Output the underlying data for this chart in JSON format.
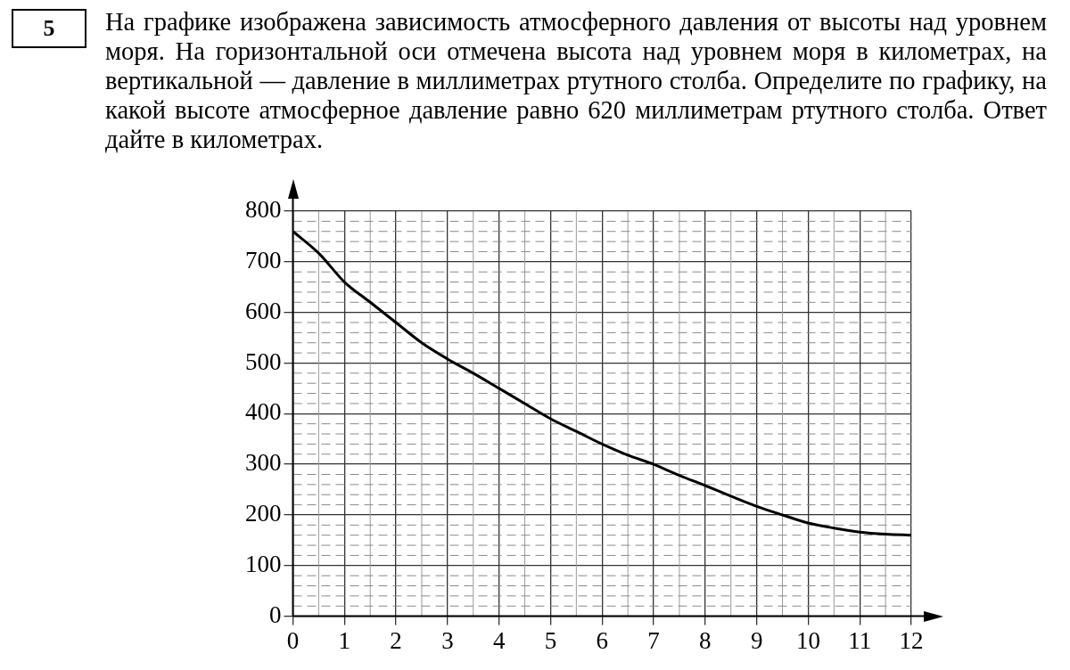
{
  "chart_data": {
    "type": "line",
    "title": "На графике изображена зависимость атмосферного давления от высоты над уровнем моря. На горизонтальной оси отмечена высота над уровнем моря в километрах, на вертикальной — давление в миллиметрах ртутного столба. Определите по графику, на какой высоте атмосферное давление равно 620 миллиметрам ртутного столба. Ответ дайте в километрах.",
    "annotations": [
      "5"
    ],
    "x": [
      0,
      0.5,
      1,
      1.5,
      2,
      2.5,
      3,
      3.5,
      4,
      4.5,
      5,
      5.5,
      6,
      6.5,
      7,
      7.5,
      8,
      8.5,
      9,
      9.5,
      10,
      10.5,
      11,
      11.5,
      12
    ],
    "series": [
      {
        "color": "#000000",
        "values": [
          760,
          717,
          660,
          620,
          580,
          540,
          508,
          480,
          450,
          420,
          390,
          365,
          340,
          318,
          300,
          278,
          258,
          237,
          217,
          200,
          184,
          174,
          166,
          162,
          160
        ]
      }
    ],
    "xlim": [
      0,
      12
    ],
    "xticks": [
      0,
      1,
      2,
      3,
      4,
      5,
      6,
      7,
      8,
      9,
      10,
      11,
      12
    ],
    "ylim": [
      0,
      800
    ],
    "yticks": [
      0,
      100,
      200,
      300,
      400,
      500,
      600,
      700,
      800
    ],
    "grid": true,
    "legend": false,
    "marker": "none",
    "line_style": "solid"
  }
}
